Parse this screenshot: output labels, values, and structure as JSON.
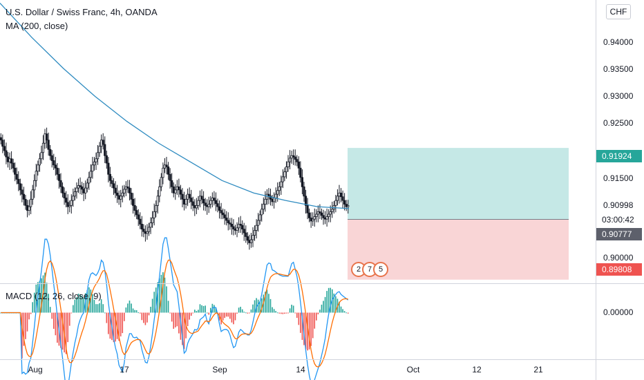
{
  "header": {
    "symbol_title": "U.S. Dollar / Swiss Franc, 4h, OANDA",
    "ma_legend": "MA (200, close)",
    "macd_legend": "MACD (12, 26, close, 9)"
  },
  "price_axis": {
    "currency_button": "CHF",
    "ticks": [
      "0.94000",
      "0.93500",
      "0.93000",
      "0.92500",
      "0.91500",
      "0.90000"
    ],
    "target_tag": "0.91924",
    "current_price": "0.90998",
    "countdown": "03:00:42",
    "entry_tag": "0.90777",
    "stop_tag": "0.89808",
    "macd_tick": "0.00000"
  },
  "time_axis": {
    "labels": [
      "Aug",
      "17",
      "Sep",
      "14",
      "Oct",
      "12",
      "21"
    ]
  },
  "event_markers": [
    "2",
    "7",
    "5"
  ],
  "colors": {
    "up": "#131722",
    "down": "#131722",
    "ma_line": "#2e8bc0",
    "profit_zone": "#c5e8e6",
    "loss_zone": "#f9d5d6",
    "target_tag": "#26a69a",
    "entry_tag": "#5d606b",
    "stop_tag": "#ef5350",
    "macd_line": "#2196f3",
    "signal_line": "#ff6d00",
    "hist_pos": "#26a69a",
    "hist_neg": "#ef5350"
  },
  "chart_data": {
    "type": "candlestick",
    "ylim": [
      0.8975,
      0.943
    ],
    "closes": [
      0.9205,
      0.9195,
      0.9188,
      0.9178,
      0.917,
      0.9175,
      0.9168,
      0.916,
      0.915,
      0.9142,
      0.9135,
      0.9125,
      0.9118,
      0.911,
      0.91,
      0.9092,
      0.9098,
      0.911,
      0.9125,
      0.914,
      0.9155,
      0.9165,
      0.9175,
      0.9185,
      0.92,
      0.9215,
      0.9205,
      0.919,
      0.918,
      0.9172,
      0.9165,
      0.916,
      0.915,
      0.914,
      0.913,
      0.912,
      0.9112,
      0.9105,
      0.9098,
      0.91,
      0.9108,
      0.9115,
      0.9122,
      0.9128,
      0.9132,
      0.913,
      0.9126,
      0.912,
      0.9128,
      0.9136,
      0.9145,
      0.9155,
      0.9165,
      0.917,
      0.9175,
      0.9185,
      0.9195,
      0.9205,
      0.9198,
      0.918,
      0.9168,
      0.915,
      0.914,
      0.9135,
      0.9128,
      0.912,
      0.9116,
      0.911,
      0.9115,
      0.912,
      0.9126,
      0.913,
      0.9128,
      0.912,
      0.911,
      0.91,
      0.9092,
      0.9085,
      0.9078,
      0.907,
      0.9062,
      0.9058,
      0.9055,
      0.9058,
      0.9065,
      0.9072,
      0.908,
      0.909,
      0.91,
      0.9115,
      0.913,
      0.9145,
      0.916,
      0.9165,
      0.9162,
      0.915,
      0.914,
      0.913,
      0.912,
      0.9125,
      0.913,
      0.9125,
      0.9118,
      0.911,
      0.9102,
      0.911,
      0.9118,
      0.9112,
      0.9106,
      0.91,
      0.9096,
      0.91,
      0.9108,
      0.9115,
      0.911,
      0.9104,
      0.91,
      0.9098,
      0.9102,
      0.9108,
      0.9112,
      0.9108,
      0.9103,
      0.9098,
      0.9092,
      0.9088,
      0.9085,
      0.908,
      0.9076,
      0.9072,
      0.907,
      0.9066,
      0.9062,
      0.906,
      0.9064,
      0.907,
      0.9068,
      0.9062,
      0.9056,
      0.905,
      0.9044,
      0.904,
      0.9045,
      0.9052,
      0.906,
      0.9068,
      0.9076,
      0.9085,
      0.9094,
      0.9102,
      0.911,
      0.9118,
      0.9115,
      0.911,
      0.9106,
      0.9112,
      0.9118,
      0.9124,
      0.913,
      0.9138,
      0.9146,
      0.9154,
      0.9162,
      0.917,
      0.9176,
      0.918,
      0.9178,
      0.9174,
      0.917,
      0.916,
      0.9145,
      0.913,
      0.9115,
      0.91,
      0.9088,
      0.908,
      0.9075,
      0.9078,
      0.9082,
      0.9086,
      0.909,
      0.9088,
      0.9084,
      0.908,
      0.9078,
      0.9082,
      0.9086,
      0.909,
      0.9094,
      0.91,
      0.9108,
      0.9115,
      0.912,
      0.9114,
      0.9108,
      0.9102,
      0.9098,
      0.91
    ],
    "ma200": [
      0.9425,
      0.937,
      0.932,
      0.9275,
      0.9235,
      0.92,
      0.917,
      0.914,
      0.912,
      0.9108,
      0.9098,
      0.9095
    ],
    "trade": {
      "target": 0.91924,
      "entry": 0.90777,
      "stop": 0.89808,
      "current": 0.90998
    },
    "macd_ylim": [
      -0.003,
      0.0018
    ]
  }
}
